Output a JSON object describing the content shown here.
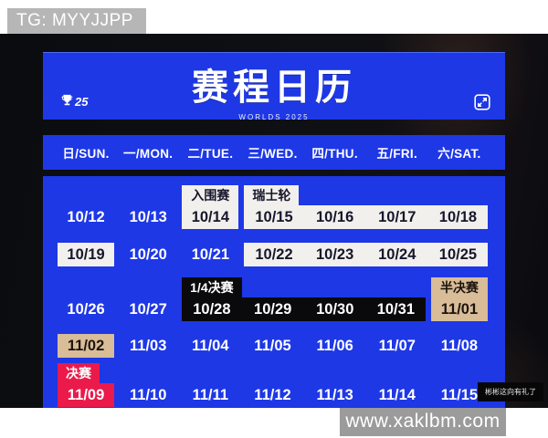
{
  "overlays": {
    "tg_badge": "TG: MYYJJPP",
    "site_watermark": "www.xaklbm.com",
    "tiny_watermark": "彬彬这向有礼了"
  },
  "header": {
    "title": "赛程日历",
    "subtitle": "WORLDS 2025",
    "logo_text": "25"
  },
  "weekdays": [
    "日/SUN.",
    "一/MON.",
    "二/TUE.",
    "三/WED.",
    "四/THU.",
    "五/FRI.",
    "六/SAT."
  ],
  "colors": {
    "card_blue": "#1e38e6",
    "box_white": "#f2f0ec",
    "box_black": "#0a0a0c",
    "box_tan": "#d9bc98",
    "box_red": "#ea1a4b",
    "dark_text": "#16162c"
  },
  "calendar": {
    "rows": [
      {
        "cells": [
          {
            "date": "10/12"
          },
          {
            "date": "10/13"
          },
          {
            "date": "10/14",
            "bg": "white",
            "join": "single",
            "label": "入围赛",
            "labelBg": "white",
            "labelFull": true
          },
          {
            "date": "10/15",
            "bg": "white",
            "join": "start",
            "label": "瑞士轮",
            "labelBg": "white"
          },
          {
            "date": "10/16",
            "bg": "white",
            "join": "mid"
          },
          {
            "date": "10/17",
            "bg": "white",
            "join": "mid"
          },
          {
            "date": "10/18",
            "bg": "white",
            "join": "end"
          }
        ]
      },
      {
        "cells": [
          {
            "date": "10/19",
            "bg": "white",
            "join": "single"
          },
          {
            "date": "10/20"
          },
          {
            "date": "10/21"
          },
          {
            "date": "10/22",
            "bg": "white",
            "join": "start"
          },
          {
            "date": "10/23",
            "bg": "white",
            "join": "mid"
          },
          {
            "date": "10/24",
            "bg": "white",
            "join": "mid"
          },
          {
            "date": "10/25",
            "bg": "white",
            "join": "end"
          }
        ]
      },
      {
        "cells": [
          {
            "date": "10/26"
          },
          {
            "date": "10/27"
          },
          {
            "date": "10/28",
            "bg": "black",
            "join": "start",
            "label": "1/4决赛",
            "labelBg": "black"
          },
          {
            "date": "10/29",
            "bg": "black",
            "join": "mid"
          },
          {
            "date": "10/30",
            "bg": "black",
            "join": "mid"
          },
          {
            "date": "10/31",
            "bg": "black",
            "join": "end"
          },
          {
            "date": "11/01",
            "bg": "tan",
            "join": "single",
            "label": "半决赛",
            "labelBg": "tan",
            "labelFull": true
          }
        ]
      },
      {
        "cells": [
          {
            "date": "11/02",
            "bg": "tan",
            "join": "single"
          },
          {
            "date": "11/03"
          },
          {
            "date": "11/04"
          },
          {
            "date": "11/05"
          },
          {
            "date": "11/06"
          },
          {
            "date": "11/07"
          },
          {
            "date": "11/08"
          }
        ]
      },
      {
        "cells": [
          {
            "date": "11/09",
            "bg": "red",
            "join": "single",
            "label": "决赛",
            "labelBg": "red"
          },
          {
            "date": "11/10"
          },
          {
            "date": "11/11"
          },
          {
            "date": "11/12"
          },
          {
            "date": "11/13"
          },
          {
            "date": "11/14"
          },
          {
            "date": "11/15"
          }
        ]
      }
    ]
  }
}
